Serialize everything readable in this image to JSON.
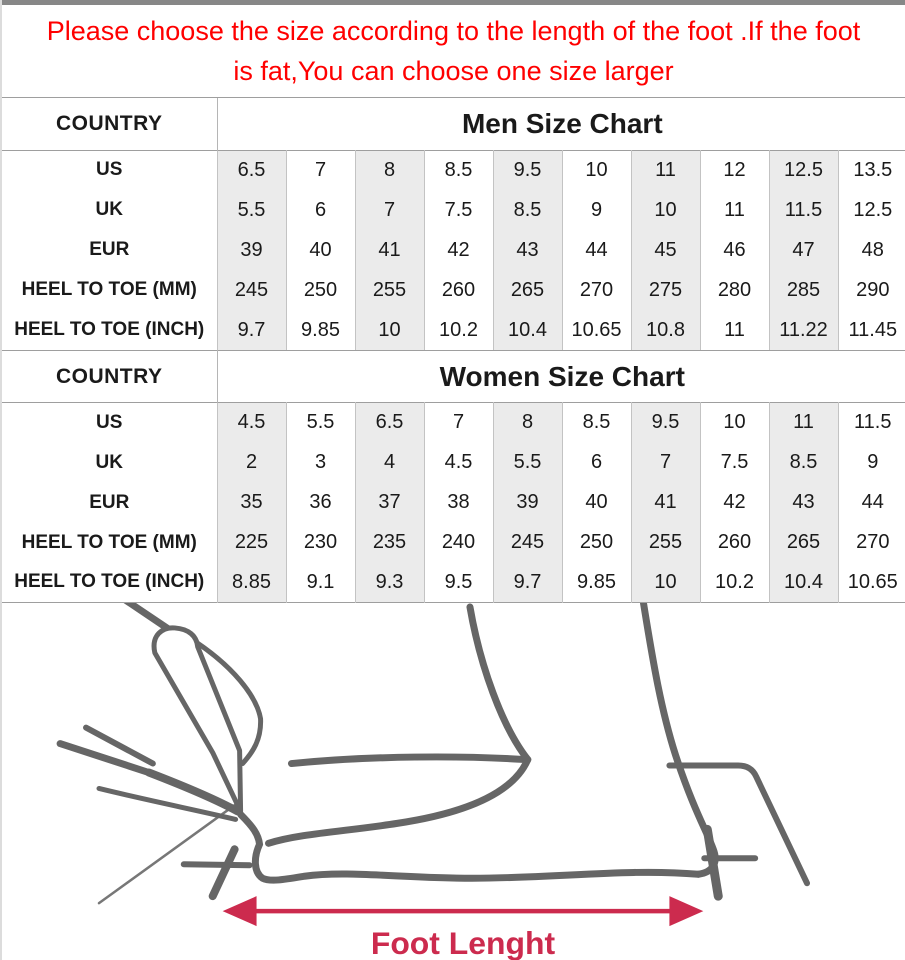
{
  "banner": {
    "line1": "Please choose the size according to the length of the foot .If the foot",
    "line2": "is fat,You can choose one size larger"
  },
  "men_table": {
    "country_header": "COUNTRY",
    "title": "Men Size Chart",
    "rows": [
      {
        "label": "US",
        "values": [
          "6.5",
          "7",
          "8",
          "8.5",
          "9.5",
          "10",
          "11",
          "12",
          "12.5",
          "13.5"
        ]
      },
      {
        "label": "UK",
        "values": [
          "5.5",
          "6",
          "7",
          "7.5",
          "8.5",
          "9",
          "10",
          "11",
          "11.5",
          "12.5"
        ]
      },
      {
        "label": "EUR",
        "values": [
          "39",
          "40",
          "41",
          "42",
          "43",
          "44",
          "45",
          "46",
          "47",
          "48"
        ]
      },
      {
        "label": "HEEL TO TOE (MM)",
        "values": [
          "245",
          "250",
          "255",
          "260",
          "265",
          "270",
          "275",
          "280",
          "285",
          "290"
        ]
      },
      {
        "label": "HEEL TO TOE (INCH)",
        "values": [
          "9.7",
          "9.85",
          "10",
          "10.2",
          "10.4",
          "10.65",
          "10.8",
          "11",
          "11.22",
          "11.45"
        ]
      }
    ]
  },
  "women_table": {
    "country_header": "COUNTRY",
    "title": "Women Size Chart",
    "rows": [
      {
        "label": "US",
        "values": [
          "4.5",
          "5.5",
          "6.5",
          "7",
          "8",
          "8.5",
          "9.5",
          "10",
          "11",
          "11.5"
        ]
      },
      {
        "label": "UK",
        "values": [
          "2",
          "3",
          "4",
          "4.5",
          "5.5",
          "6",
          "7",
          "7.5",
          "8.5",
          "9"
        ]
      },
      {
        "label": "EUR",
        "values": [
          "35",
          "36",
          "37",
          "38",
          "39",
          "40",
          "41",
          "42",
          "43",
          "44"
        ]
      },
      {
        "label": "HEEL TO TOE (MM)",
        "values": [
          "225",
          "230",
          "235",
          "240",
          "245",
          "250",
          "255",
          "260",
          "265",
          "270"
        ]
      },
      {
        "label": "HEEL TO TOE (INCH)",
        "values": [
          "8.85",
          "9.1",
          "9.3",
          "9.5",
          "9.7",
          "9.85",
          "10",
          "10.2",
          "10.4",
          "10.65"
        ]
      }
    ]
  },
  "diagram": {
    "label": "Foot Lenght"
  },
  "colors": {
    "warning_red": "#ff0000",
    "arrow_red": "#cc2b4e",
    "drawing_gray": "#666666",
    "shade_gray": "#ebebeb",
    "grid_gray": "#9e9e9e"
  }
}
